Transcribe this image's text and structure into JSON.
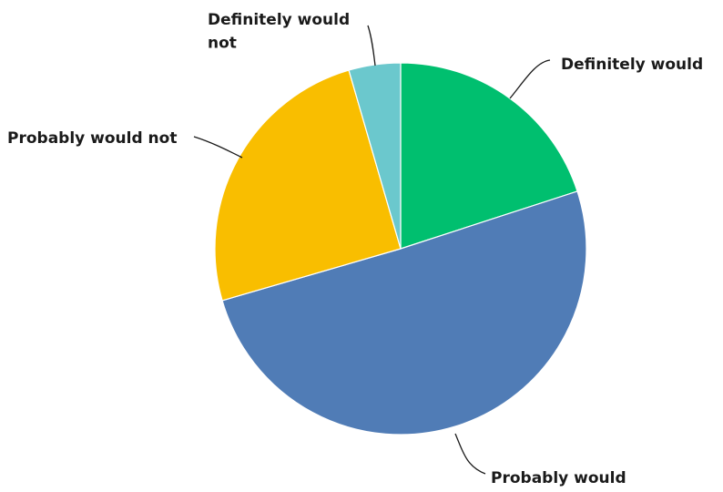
{
  "chart_data": {
    "type": "pie",
    "title": "",
    "start_angle_deg": 0,
    "direction": "clockwise",
    "slices": [
      {
        "label": "Definitely would",
        "value": 20.0,
        "color": "#00BF6F"
      },
      {
        "label": "Probably would",
        "value": 50.5,
        "color": "#507CB6"
      },
      {
        "label": "Probably would not",
        "value": 25.0,
        "color": "#F9BE00"
      },
      {
        "label": "Definitely would not",
        "value": 4.5,
        "color": "#6BC8CD"
      }
    ],
    "legend": "none"
  }
}
